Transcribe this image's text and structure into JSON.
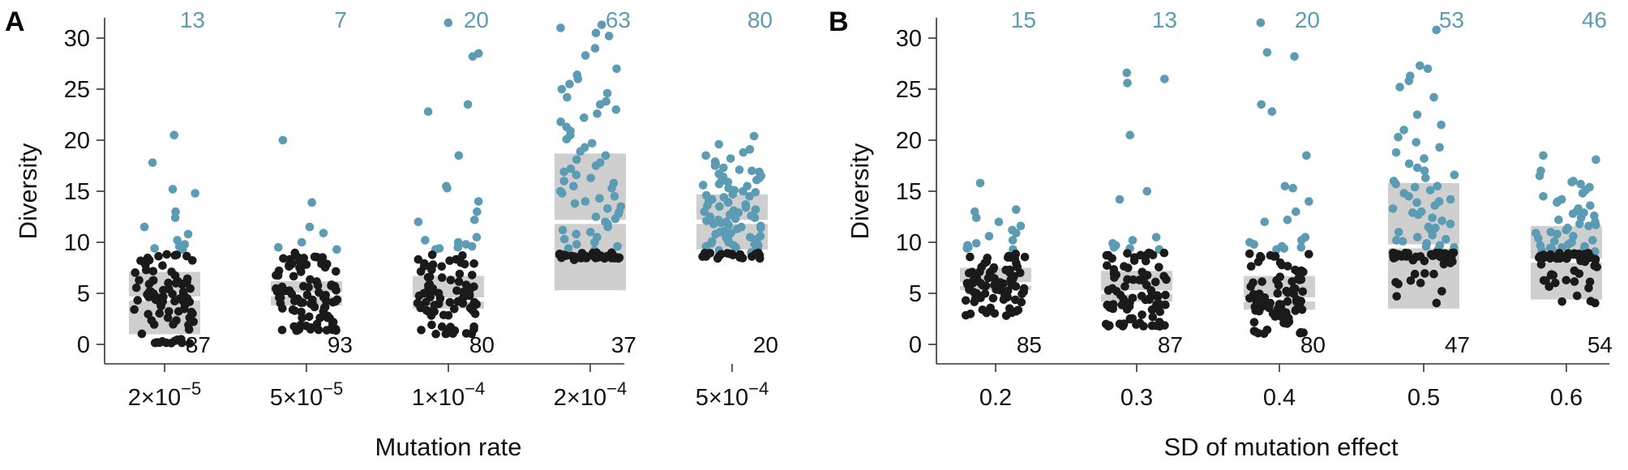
{
  "colors": {
    "high_diversity": "#5b9bb4",
    "low_diversity": "#1a1a1a",
    "box": "#cfcfcf",
    "median": "#ffffff"
  },
  "chart_data": [
    {
      "type": "scatter",
      "panel": "A",
      "xlabel": "Mutation rate",
      "ylabel": "Diversity",
      "ylim": [
        0,
        32
      ],
      "yticks": [
        0,
        5,
        10,
        15,
        20,
        25,
        30
      ],
      "grid": false,
      "categories": [
        {
          "base": "2×10",
          "exp": "−5"
        },
        {
          "base": "5×10",
          "exp": "−5"
        },
        {
          "base": "1×10",
          "exp": "−4"
        },
        {
          "base": "2×10",
          "exp": "−4"
        },
        {
          "base": "5×10",
          "exp": "−4"
        }
      ],
      "high_counts": [
        "13",
        "7",
        "20",
        "63",
        "80"
      ],
      "low_counts": [
        "87",
        "93",
        "80",
        "37",
        "20"
      ],
      "boxes": [
        {
          "q1": 1.0,
          "median": 4.5,
          "q3": 7.1
        },
        {
          "q1": 3.8,
          "median": 4.9,
          "q3": 6.2
        },
        {
          "q1": 3.5,
          "median": 4.4,
          "q3": 6.7
        },
        {
          "q1": 5.3,
          "median": 12.0,
          "q3": 18.7
        },
        {
          "q1": 9.3,
          "median": 12.0,
          "q3": 14.7
        }
      ],
      "threshold": 9.0,
      "high_points": [
        [
          20.5,
          17.8,
          15.2,
          14.8,
          13.0,
          12.4,
          11.5,
          10.8,
          10.2,
          9.8,
          9.6,
          9.4,
          9.3
        ],
        [
          20.0,
          13.9,
          11.5,
          10.9,
          10.0,
          9.5,
          9.3
        ],
        [
          31.5,
          28.5,
          28.2,
          23.5,
          22.8,
          18.5,
          15.5,
          15.3,
          14.0,
          13.0,
          12.2,
          12.0,
          10.5,
          10.2,
          10.0,
          9.8,
          9.6,
          9.5,
          9.4,
          9.3
        ],
        [
          31.3,
          31.0,
          30.5,
          30.2,
          29.0,
          28.3,
          27.0,
          26.4,
          26.0,
          25.5,
          25.0,
          24.6,
          24.2,
          23.8,
          23.5,
          23.0,
          22.6,
          22.2,
          21.8,
          21.3,
          20.9,
          20.5,
          20.1,
          19.7,
          19.3,
          18.9,
          18.5,
          18.1,
          17.8,
          17.5,
          17.2,
          16.9,
          16.6,
          16.3,
          16.0,
          15.8,
          15.5,
          15.3,
          15.0,
          14.8,
          14.5,
          14.3,
          14.0,
          13.8,
          13.5,
          13.3,
          13.0,
          12.8,
          12.5,
          12.3,
          12.0,
          11.8,
          11.5,
          11.2,
          11.0,
          10.8,
          10.5,
          10.3,
          10.0,
          9.8,
          9.6,
          9.4,
          9.2
        ],
        [
          20.4,
          19.6,
          19.1,
          18.8,
          18.5,
          18.2,
          17.9,
          17.7,
          17.5,
          17.3,
          17.1,
          16.9,
          16.7,
          16.5,
          16.3,
          16.1,
          15.9,
          15.7,
          15.5,
          15.3,
          15.1,
          14.9,
          14.7,
          14.5,
          14.4,
          14.2,
          14.0,
          13.9,
          13.7,
          13.5,
          13.4,
          13.2,
          13.0,
          12.9,
          12.7,
          12.6,
          12.4,
          12.3,
          12.1,
          12.0,
          11.8,
          11.7,
          11.5,
          11.4,
          11.3,
          11.1,
          11.0,
          10.9,
          10.7,
          10.6,
          10.5,
          10.4,
          10.2,
          10.1,
          10.0,
          9.9,
          9.8,
          9.7,
          9.6,
          9.5,
          9.4,
          9.3,
          9.2,
          9.1,
          9.0,
          15.0,
          16.0,
          13.6,
          12.2,
          11.6,
          10.8,
          14.6,
          13.1,
          12.5,
          11.9,
          10.3,
          9.7,
          17.0,
          16.4,
          15.6
        ]
      ]
    },
    {
      "type": "scatter",
      "panel": "B",
      "xlabel": "SD of mutation effect",
      "ylabel": "Diversity",
      "ylim": [
        0,
        32
      ],
      "yticks": [
        0,
        5,
        10,
        15,
        20,
        25,
        30
      ],
      "grid": false,
      "categories": [
        {
          "base": "0.2",
          "exp": ""
        },
        {
          "base": "0.3",
          "exp": ""
        },
        {
          "base": "0.4",
          "exp": ""
        },
        {
          "base": "0.5",
          "exp": ""
        },
        {
          "base": "0.6",
          "exp": ""
        }
      ],
      "high_counts": [
        "15",
        "13",
        "20",
        "53",
        "46"
      ],
      "low_counts": [
        "85",
        "87",
        "80",
        "47",
        "54"
      ],
      "boxes": [
        {
          "q1": 5.3,
          "median": 5.9,
          "q3": 7.5
        },
        {
          "q1": 4.2,
          "median": 5.1,
          "q3": 7.2
        },
        {
          "q1": 3.4,
          "median": 4.4,
          "q3": 6.7
        },
        {
          "q1": 3.5,
          "median": 9.6,
          "q3": 15.8
        },
        {
          "q1": 4.4,
          "median": 8.2,
          "q3": 11.6
        }
      ],
      "threshold": 9.0,
      "high_points": [
        [
          15.8,
          13.2,
          13.0,
          12.4,
          12.0,
          11.6,
          11.2,
          10.9,
          10.6,
          10.2,
          9.9,
          9.7,
          9.5,
          9.4,
          9.3
        ],
        [
          26.6,
          26.0,
          25.6,
          20.5,
          15.0,
          14.2,
          10.5,
          10.2,
          9.9,
          9.7,
          9.5,
          9.4,
          9.3
        ],
        [
          31.5,
          28.6,
          28.2,
          23.5,
          22.8,
          18.5,
          15.5,
          15.3,
          14.0,
          13.0,
          12.2,
          12.0,
          10.5,
          10.2,
          10.0,
          9.8,
          9.6,
          9.5,
          9.4,
          9.3
        ],
        [
          30.8,
          27.3,
          27.0,
          26.3,
          25.8,
          25.2,
          24.2,
          22.5,
          21.5,
          21.0,
          20.3,
          19.8,
          19.3,
          18.8,
          18.2,
          17.7,
          17.3,
          17.0,
          16.6,
          16.3,
          16.0,
          15.7,
          15.4,
          15.1,
          14.8,
          14.5,
          14.2,
          13.9,
          13.6,
          13.3,
          13.0,
          12.7,
          12.4,
          12.1,
          11.8,
          11.5,
          11.2,
          11.0,
          10.7,
          10.5,
          10.3,
          10.1,
          9.9,
          9.7,
          9.5,
          9.3,
          9.2,
          15.5,
          14.0,
          12.9,
          11.4,
          10.2,
          9.6
        ],
        [
          18.5,
          18.1,
          17.0,
          16.5,
          16.0,
          15.7,
          15.4,
          15.1,
          14.8,
          14.5,
          14.2,
          13.9,
          13.6,
          13.3,
          13.1,
          12.8,
          12.6,
          12.4,
          12.2,
          12.0,
          11.8,
          11.6,
          11.4,
          11.2,
          11.0,
          10.8,
          10.6,
          10.4,
          10.2,
          10.0,
          9.9,
          9.8,
          9.7,
          9.6,
          9.5,
          9.4,
          9.3,
          9.2,
          9.1,
          15.9,
          14.0,
          12.9,
          11.7,
          10.9,
          10.1,
          9.45
        ]
      ]
    }
  ]
}
